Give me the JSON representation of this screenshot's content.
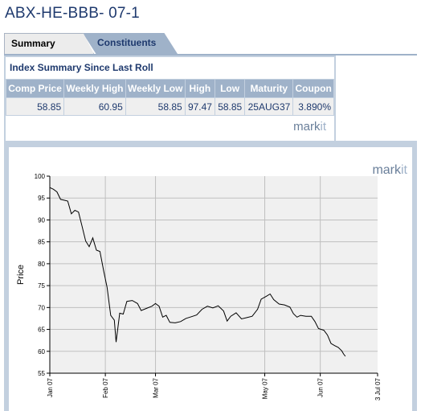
{
  "page": {
    "title": "ABX-HE-BBB- 07-1"
  },
  "tabs": [
    {
      "label": "Summary",
      "active": true
    },
    {
      "label": "Constituents",
      "active": false
    }
  ],
  "summary": {
    "heading": "Index Summary Since Last Roll",
    "columns": [
      "Comp Price",
      "Weekly High",
      "Weekly Low",
      "High",
      "Low",
      "Maturity",
      "Coupon"
    ],
    "row": [
      "58.85",
      "60.95",
      "58.85",
      "97.47",
      "58.85",
      "25AUG37",
      "3.890%"
    ],
    "logo": {
      "mark": "mark",
      "it": "it"
    }
  },
  "chart_logo": {
    "mark": "mark",
    "it": "it"
  },
  "colors": {
    "title": "#1f3a6e",
    "header_bg": "#9fb2c9",
    "panel_bg": "#c3d0df",
    "plot_bg": "#f0f0f0",
    "line": "#000000"
  },
  "chart_data": {
    "type": "line",
    "title": "",
    "xlabel": "",
    "ylabel": "Price",
    "ylim": [
      55,
      100
    ],
    "yticks": [
      55,
      60,
      65,
      70,
      75,
      80,
      85,
      90,
      95,
      100
    ],
    "xlim": [
      "2007-01-01",
      "2007-07-03"
    ],
    "xticks": [
      {
        "label": "Jan 07",
        "date": "2007-01-01"
      },
      {
        "label": "Feb 07",
        "date": "2007-02-01"
      },
      {
        "label": "Mar 07",
        "date": "2007-03-01"
      },
      {
        "label": "May 07",
        "date": "2007-05-01"
      },
      {
        "label": "Jun 07",
        "date": "2007-06-01"
      },
      {
        "label": "3 Jul 07",
        "date": "2007-07-03"
      }
    ],
    "grid": true,
    "series": [
      {
        "points": [
          [
            "2007-01-01",
            97.4
          ],
          [
            "2007-01-03",
            97.0
          ],
          [
            "2007-01-05",
            96.4
          ],
          [
            "2007-01-07",
            94.7
          ],
          [
            "2007-01-09",
            94.5
          ],
          [
            "2007-01-11",
            94.3
          ],
          [
            "2007-01-13",
            91.4
          ],
          [
            "2007-01-15",
            92.2
          ],
          [
            "2007-01-17",
            91.8
          ],
          [
            "2007-01-19",
            88.6
          ],
          [
            "2007-01-21",
            85.2
          ],
          [
            "2007-01-23",
            83.9
          ],
          [
            "2007-01-25",
            85.9
          ],
          [
            "2007-01-27",
            83.1
          ],
          [
            "2007-01-29",
            82.8
          ],
          [
            "2007-01-31",
            78.5
          ],
          [
            "2007-02-02",
            74.6
          ],
          [
            "2007-02-04",
            68.2
          ],
          [
            "2007-02-06",
            67.1
          ],
          [
            "2007-02-07",
            62.1
          ],
          [
            "2007-02-09",
            68.7
          ],
          [
            "2007-02-11",
            68.5
          ],
          [
            "2007-02-13",
            71.4
          ],
          [
            "2007-02-16",
            71.6
          ],
          [
            "2007-02-19",
            70.9
          ],
          [
            "2007-02-21",
            69.3
          ],
          [
            "2007-02-24",
            69.8
          ],
          [
            "2007-02-27",
            70.3
          ],
          [
            "2007-03-01",
            70.9
          ],
          [
            "2007-03-03",
            70.3
          ],
          [
            "2007-03-05",
            67.8
          ],
          [
            "2007-03-07",
            68.2
          ],
          [
            "2007-03-09",
            66.6
          ],
          [
            "2007-03-12",
            66.5
          ],
          [
            "2007-03-15",
            66.8
          ],
          [
            "2007-03-18",
            67.5
          ],
          [
            "2007-03-21",
            67.9
          ],
          [
            "2007-03-24",
            68.3
          ],
          [
            "2007-03-27",
            69.6
          ],
          [
            "2007-03-30",
            70.3
          ],
          [
            "2007-04-02",
            69.9
          ],
          [
            "2007-04-05",
            70.4
          ],
          [
            "2007-04-08",
            69.2
          ],
          [
            "2007-04-10",
            66.9
          ],
          [
            "2007-04-12",
            68.0
          ],
          [
            "2007-04-15",
            68.8
          ],
          [
            "2007-04-18",
            67.4
          ],
          [
            "2007-04-21",
            67.7
          ],
          [
            "2007-04-24",
            68.0
          ],
          [
            "2007-04-27",
            69.6
          ],
          [
            "2007-04-29",
            71.9
          ],
          [
            "2007-05-02",
            72.6
          ],
          [
            "2007-05-04",
            73.1
          ],
          [
            "2007-05-06",
            71.8
          ],
          [
            "2007-05-09",
            70.8
          ],
          [
            "2007-05-12",
            70.6
          ],
          [
            "2007-05-15",
            70.1
          ],
          [
            "2007-05-17",
            68.6
          ],
          [
            "2007-05-19",
            67.8
          ],
          [
            "2007-05-21",
            68.2
          ],
          [
            "2007-05-24",
            68.0
          ],
          [
            "2007-05-27",
            68.0
          ],
          [
            "2007-05-29",
            66.8
          ],
          [
            "2007-05-31",
            65.2
          ],
          [
            "2007-06-03",
            64.8
          ],
          [
            "2007-06-05",
            63.7
          ],
          [
            "2007-06-07",
            61.8
          ],
          [
            "2007-06-09",
            61.3
          ],
          [
            "2007-06-11",
            60.9
          ],
          [
            "2007-06-13",
            60.1
          ],
          [
            "2007-06-14",
            59.4
          ],
          [
            "2007-06-15",
            58.85
          ]
        ]
      }
    ]
  }
}
